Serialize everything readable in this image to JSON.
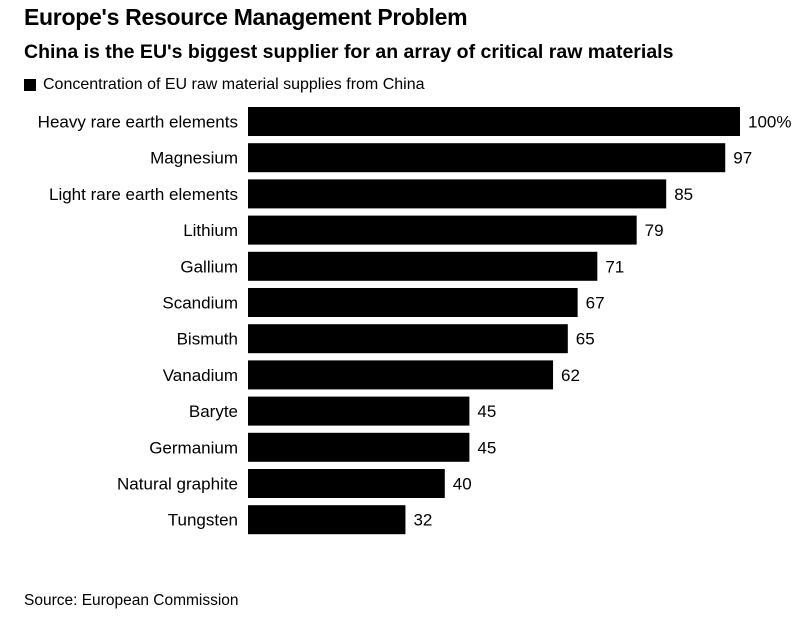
{
  "colors": {
    "bar": "#000000",
    "text": "#000000",
    "background": "#ffffff"
  },
  "header": {
    "title": "Europe's Resource Management Problem",
    "subtitle": "China is the EU's biggest supplier for an array of critical raw materials"
  },
  "footer": {
    "source": "Source: European Commission"
  },
  "chart_data": {
    "type": "bar",
    "orientation": "horizontal",
    "title": "Europe's Resource Management Problem",
    "subtitle": "China is the EU's biggest supplier for an array of critical raw materials",
    "xlabel": "",
    "ylabel": "",
    "xlim": [
      0,
      100
    ],
    "grid": false,
    "legend": {
      "position": "top-left",
      "entries": [
        "Concentration of EU raw material supplies from China"
      ]
    },
    "categories": [
      "Heavy rare earth elements",
      "Magnesium",
      "Light rare earth elements",
      "Lithium",
      "Gallium",
      "Scandium",
      "Bismuth",
      "Vanadium",
      "Baryte",
      "Germanium",
      "Natural graphite",
      "Tungsten"
    ],
    "series": [
      {
        "name": "Concentration of EU raw material supplies from China",
        "values": [
          100,
          97,
          85,
          79,
          71,
          67,
          65,
          62,
          45,
          45,
          40,
          32
        ],
        "labels": [
          "100%",
          "97",
          "85",
          "79",
          "71",
          "67",
          "65",
          "62",
          "45",
          "45",
          "40",
          "32"
        ]
      }
    ]
  }
}
